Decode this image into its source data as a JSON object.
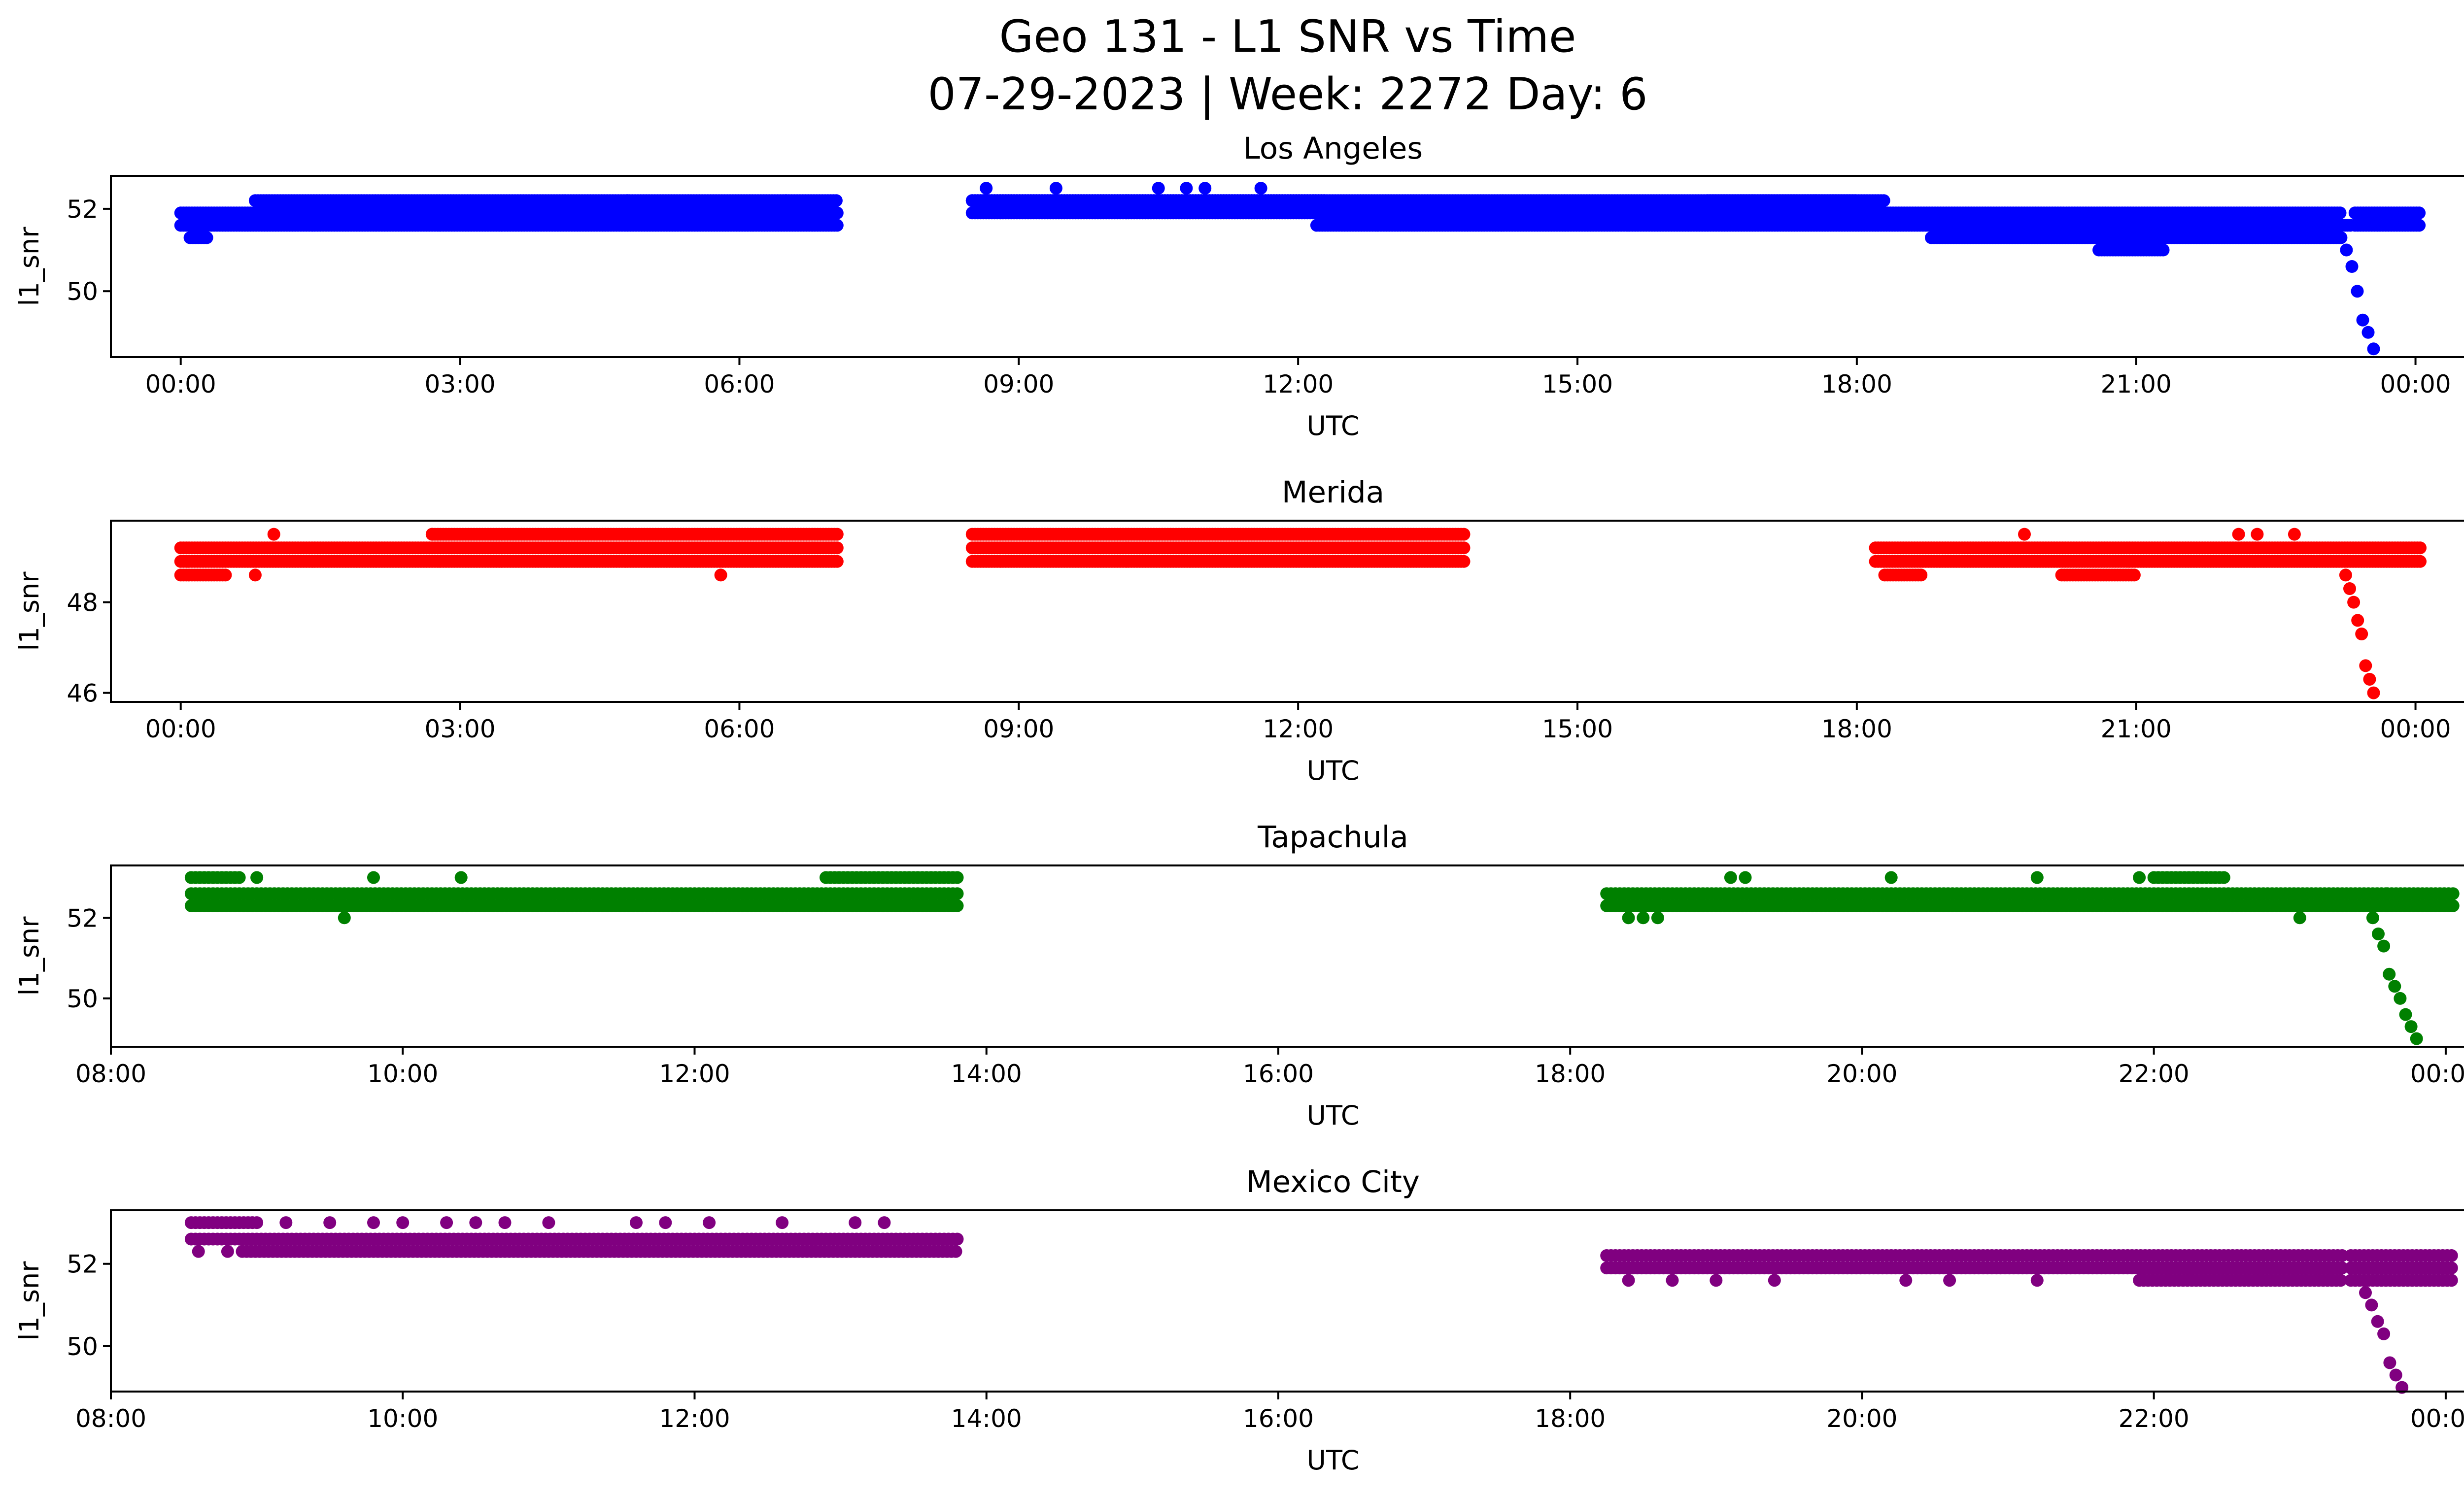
{
  "title_line1": "Geo 131 - L1 SNR vs Time",
  "title_line2": "07-29-2023 | Week: 2272 Day: 6",
  "chart_data": [
    {
      "type": "scatter",
      "title": "Los Angeles",
      "xlabel": "UTC",
      "ylabel": "l1_snr",
      "color": "#0000ff",
      "xlim": [
        -0.75,
        25.5
      ],
      "ylim": [
        48.4,
        52.8
      ],
      "xticks": [
        0,
        3,
        6,
        9,
        12,
        15,
        18,
        21,
        24
      ],
      "xtick_labels": [
        "00:00",
        "03:00",
        "06:00",
        "09:00",
        "12:00",
        "15:00",
        "18:00",
        "21:00",
        "00:00"
      ],
      "yticks": [
        50,
        52
      ],
      "ytick_labels": [
        "50",
        "52"
      ],
      "bands": [
        {
          "x_start": 0.0,
          "x_end": 7.05,
          "values": [
            51.6,
            51.9
          ]
        },
        {
          "x_start": 0.8,
          "x_end": 7.05,
          "values": [
            52.2
          ]
        },
        {
          "x_start": 0.1,
          "x_end": 0.3,
          "values": [
            51.3
          ]
        },
        {
          "x_start": 8.5,
          "x_end": 18.0,
          "values": [
            52.2,
            51.9
          ]
        },
        {
          "x_start": 8.5,
          "x_end": 12.3,
          "values": [
            52.2
          ]
        },
        {
          "x_start": 12.2,
          "x_end": 23.3,
          "values": [
            51.6
          ]
        },
        {
          "x_start": 16.4,
          "x_end": 18.3,
          "values": [
            52.2
          ]
        },
        {
          "x_start": 18.0,
          "x_end": 23.2,
          "values": [
            51.9
          ]
        },
        {
          "x_start": 18.8,
          "x_end": 23.2,
          "values": [
            51.3
          ]
        },
        {
          "x_start": 20.6,
          "x_end": 21.3,
          "values": [
            51.0
          ]
        },
        {
          "x_start": 23.35,
          "x_end": 24.05,
          "values": [
            51.6,
            51.9
          ]
        }
      ],
      "extra_points": [
        [
          8.65,
          52.5
        ],
        [
          9.4,
          52.5
        ],
        [
          10.5,
          52.5
        ],
        [
          10.8,
          52.5
        ],
        [
          11.0,
          52.5
        ],
        [
          11.6,
          52.5
        ],
        [
          1.5,
          51.9
        ],
        [
          4.8,
          52.2
        ],
        [
          6.5,
          52.2
        ]
      ],
      "dip": {
        "x_start": 23.2,
        "x_end": 23.55,
        "values": [
          51.3,
          51.0,
          50.6,
          50.0,
          49.3,
          49.0,
          48.6
        ]
      }
    },
    {
      "type": "scatter",
      "title": "Merida",
      "xlabel": "UTC",
      "ylabel": "l1_snr",
      "color": "#ff0000",
      "xlim": [
        -0.75,
        25.5
      ],
      "ylim": [
        45.8,
        49.8
      ],
      "xticks": [
        0,
        3,
        6,
        9,
        12,
        15,
        18,
        21,
        24
      ],
      "xtick_labels": [
        "00:00",
        "03:00",
        "06:00",
        "09:00",
        "12:00",
        "15:00",
        "18:00",
        "21:00",
        "00:00"
      ],
      "yticks": [
        46,
        48
      ],
      "ytick_labels": [
        "46",
        "48"
      ],
      "bands": [
        {
          "x_start": 0.0,
          "x_end": 7.05,
          "values": [
            48.9,
            49.2
          ]
        },
        {
          "x_start": 0.0,
          "x_end": 0.5,
          "values": [
            48.6
          ]
        },
        {
          "x_start": 2.7,
          "x_end": 7.05,
          "values": [
            49.5
          ]
        },
        {
          "x_start": 8.5,
          "x_end": 13.8,
          "values": [
            48.9,
            49.2,
            49.5
          ]
        },
        {
          "x_start": 18.2,
          "x_end": 24.05,
          "values": [
            48.9,
            49.2
          ]
        },
        {
          "x_start": 18.3,
          "x_end": 18.7,
          "values": [
            48.6
          ]
        },
        {
          "x_start": 20.2,
          "x_end": 21.0,
          "values": [
            48.6
          ]
        }
      ],
      "extra_points": [
        [
          0.8,
          48.6
        ],
        [
          1.0,
          49.5
        ],
        [
          2.7,
          49.5
        ],
        [
          5.8,
          48.6
        ],
        [
          19.8,
          49.5
        ],
        [
          22.1,
          49.5
        ],
        [
          22.3,
          49.5
        ],
        [
          22.7,
          49.5
        ]
      ],
      "dip": {
        "x_start": 23.25,
        "x_end": 23.55,
        "values": [
          48.6,
          48.3,
          48.0,
          47.6,
          47.3,
          46.6,
          46.3,
          46.0
        ]
      }
    },
    {
      "type": "scatter",
      "title": "Tapachula",
      "xlabel": "UTC",
      "ylabel": "l1_snr",
      "color": "#008000",
      "xlim": [
        8.0,
        24.75
      ],
      "ylim": [
        48.8,
        53.3
      ],
      "xticks": [
        8,
        10,
        12,
        14,
        16,
        18,
        20,
        22,
        24
      ],
      "xtick_labels": [
        "08:00",
        "10:00",
        "12:00",
        "14:00",
        "16:00",
        "18:00",
        "20:00",
        "22:00",
        "00:00"
      ],
      "yticks": [
        50,
        52
      ],
      "ytick_labels": [
        "50",
        "52"
      ],
      "bands": [
        {
          "x_start": 8.55,
          "x_end": 13.8,
          "values": [
            52.3,
            52.6
          ]
        },
        {
          "x_start": 8.55,
          "x_end": 8.9,
          "values": [
            53.0
          ]
        },
        {
          "x_start": 12.9,
          "x_end": 13.8,
          "values": [
            53.0
          ]
        },
        {
          "x_start": 18.25,
          "x_end": 23.6,
          "values": [
            52.3,
            52.6
          ]
        },
        {
          "x_start": 22.0,
          "x_end": 22.5,
          "values": [
            53.0
          ]
        },
        {
          "x_start": 23.6,
          "x_end": 24.05,
          "values": [
            52.3,
            52.6
          ]
        }
      ],
      "extra_points": [
        [
          9.0,
          53.0
        ],
        [
          9.6,
          52.0
        ],
        [
          9.8,
          53.0
        ],
        [
          10.4,
          53.0
        ],
        [
          13.2,
          52.3
        ],
        [
          18.4,
          52.0
        ],
        [
          18.5,
          52.0
        ],
        [
          18.6,
          52.0
        ],
        [
          19.1,
          53.0
        ],
        [
          19.2,
          53.0
        ],
        [
          20.2,
          53.0
        ],
        [
          21.2,
          53.0
        ],
        [
          21.9,
          53.0
        ],
        [
          22.2,
          52.3
        ],
        [
          23.0,
          52.0
        ]
      ],
      "dip": {
        "x_start": 23.5,
        "x_end": 23.8,
        "values": [
          52.0,
          51.6,
          51.3,
          50.6,
          50.3,
          50.0,
          49.6,
          49.3,
          49.0
        ]
      }
    },
    {
      "type": "scatter",
      "title": "Mexico City",
      "xlabel": "UTC",
      "ylabel": "l1_snr",
      "color": "#800080",
      "xlim": [
        8.0,
        24.75
      ],
      "ylim": [
        48.9,
        53.3
      ],
      "xticks": [
        8,
        10,
        12,
        14,
        16,
        18,
        20,
        22,
        24
      ],
      "xtick_labels": [
        "08:00",
        "10:00",
        "12:00",
        "14:00",
        "16:00",
        "18:00",
        "20:00",
        "22:00",
        "00:00"
      ],
      "yticks": [
        50,
        52
      ],
      "ytick_labels": [
        "50",
        "52"
      ],
      "bands": [
        {
          "x_start": 8.55,
          "x_end": 13.8,
          "values": [
            52.6
          ]
        },
        {
          "x_start": 8.9,
          "x_end": 13.8,
          "values": [
            52.3
          ]
        },
        {
          "x_start": 8.55,
          "x_end": 9.0,
          "values": [
            53.0
          ]
        },
        {
          "x_start": 18.25,
          "x_end": 23.3,
          "values": [
            51.9,
            52.2
          ]
        },
        {
          "x_start": 21.9,
          "x_end": 23.3,
          "values": [
            51.6
          ]
        },
        {
          "x_start": 23.35,
          "x_end": 24.05,
          "values": [
            51.6,
            51.9,
            52.2
          ]
        }
      ],
      "extra_points": [
        [
          8.6,
          52.3
        ],
        [
          8.8,
          52.3
        ],
        [
          9.2,
          53.0
        ],
        [
          9.5,
          53.0
        ],
        [
          9.8,
          53.0
        ],
        [
          10.0,
          53.0
        ],
        [
          10.3,
          53.0
        ],
        [
          10.5,
          53.0
        ],
        [
          10.7,
          53.0
        ],
        [
          11.0,
          53.0
        ],
        [
          11.6,
          53.0
        ],
        [
          11.8,
          53.0
        ],
        [
          12.1,
          53.0
        ],
        [
          12.6,
          53.0
        ],
        [
          13.1,
          53.0
        ],
        [
          13.3,
          53.0
        ],
        [
          18.4,
          51.6
        ],
        [
          18.7,
          51.6
        ],
        [
          19.0,
          51.6
        ],
        [
          19.4,
          51.6
        ],
        [
          20.3,
          51.6
        ],
        [
          20.6,
          51.6
        ],
        [
          21.2,
          51.6
        ]
      ],
      "dip": {
        "x_start": 23.45,
        "x_end": 23.7,
        "values": [
          51.3,
          51.0,
          50.6,
          50.3,
          49.6,
          49.3,
          49.0
        ]
      }
    }
  ]
}
